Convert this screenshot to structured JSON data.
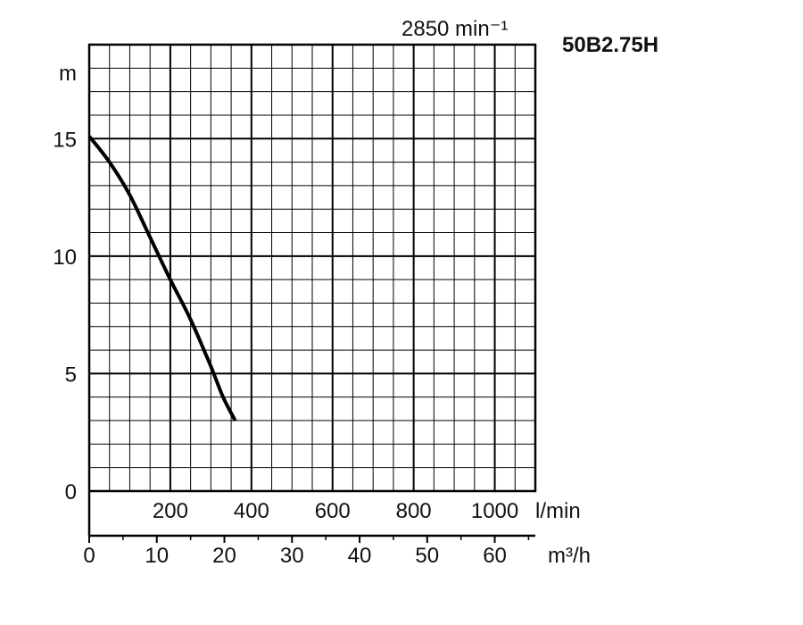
{
  "chart_data": {
    "type": "line",
    "model": "50B2.75H",
    "speed_label": "2850 min⁻¹",
    "ylabel": "m",
    "ylim": [
      0,
      19
    ],
    "yticks": [
      0,
      5,
      10,
      15
    ],
    "x_lmin": {
      "unit": "l/min",
      "ticks": [
        200,
        400,
        600,
        800,
        1000
      ],
      "range": [
        0,
        1100
      ]
    },
    "x_m3h": {
      "unit": "m³/h",
      "ticks": [
        0,
        10,
        20,
        30,
        40,
        50,
        60
      ],
      "range": [
        0,
        66
      ]
    },
    "grid": true,
    "series": [
      {
        "x": [
          0,
          50,
          100,
          150,
          200,
          250,
          300,
          330,
          360
        ],
        "y": [
          15.1,
          14.0,
          12.6,
          10.8,
          9.0,
          7.3,
          5.3,
          4.0,
          3.0
        ]
      }
    ]
  }
}
